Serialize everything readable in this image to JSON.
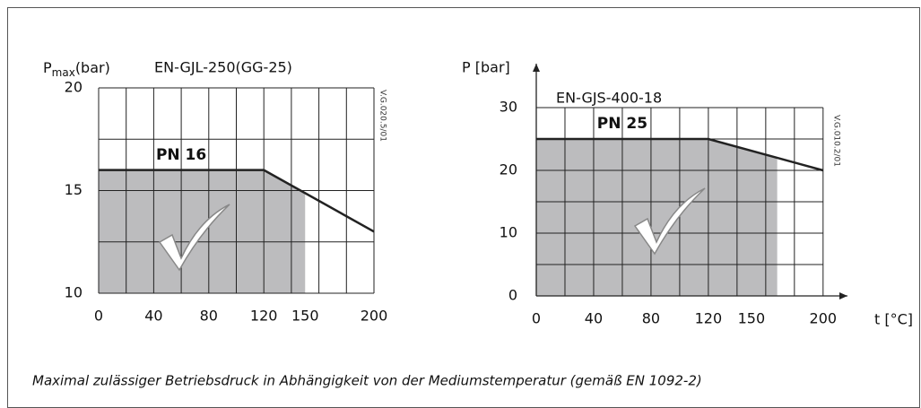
{
  "chart_data": [
    {
      "type": "line",
      "ylabel": {
        "main": "P",
        "sub": "max",
        "rest": "(bar)"
      },
      "title": "EN-GJL-250(GG-25)",
      "code": "V.G.020.5/01",
      "label": "PN 16",
      "x": [
        0,
        120,
        200
      ],
      "values": [
        16,
        16,
        13
      ],
      "color": "#222",
      "shade_to": 150,
      "shade_color": "#bcbcbe",
      "xlim": [
        0,
        200
      ],
      "ylim": [
        10,
        20
      ],
      "xticks": [
        0,
        40,
        80,
        120,
        150,
        200
      ],
      "yticks": [
        10,
        15,
        20
      ],
      "xgrid": [
        0,
        20,
        40,
        60,
        80,
        100,
        120,
        140,
        160,
        180,
        200
      ],
      "ygrid": [
        10,
        12.5,
        15,
        17.5,
        20
      ],
      "arrows": false
    },
    {
      "type": "line",
      "ylabel": "P [bar]",
      "xlabel": "t [°C]",
      "title": "EN-GJS-400-18",
      "code": "V.G.010.2/01",
      "label": "PN 25",
      "x": [
        0,
        120,
        200
      ],
      "values": [
        25,
        25,
        20
      ],
      "color": "#222",
      "shade_to": 168,
      "shade_color": "#bcbcbe",
      "xlim": [
        0,
        217
      ],
      "ylim": [
        0,
        37
      ],
      "xticks": [
        0,
        40,
        80,
        120,
        150,
        200
      ],
      "yticks": [
        0,
        10,
        20,
        30
      ],
      "xgrid": [
        0,
        20,
        40,
        60,
        80,
        100,
        120,
        140,
        160,
        180,
        200
      ],
      "ygrid": [
        0,
        5,
        10,
        15,
        20,
        25,
        30
      ],
      "arrows": true
    }
  ],
  "caption": "Maximal zulässiger Betriebsdruck in Abhängigkeit von der Mediumstemperatur (gemäß EN 1092-2)"
}
